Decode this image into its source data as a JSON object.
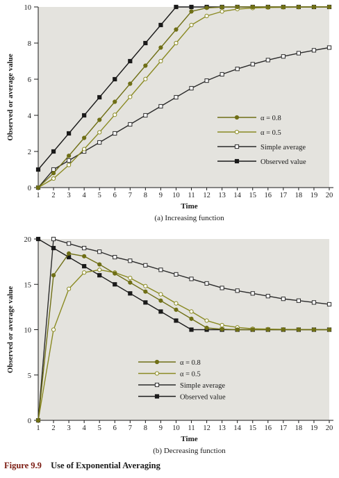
{
  "figure": {
    "caption_number": "Figure 9.9",
    "caption_text": "Use of Exponential Averaging"
  },
  "colors": {
    "plot_bg": "#e4e3de",
    "axis": "#1a1a1a",
    "observed": "#1a1a1a",
    "simple": "#2a2a2a",
    "alpha08": "#6f6f16",
    "alpha05": "#8a8a22"
  },
  "chart_data": [
    {
      "type": "line",
      "title": "(a) Increasing function",
      "xlabel": "Time",
      "ylabel": "Observed or average value",
      "xlim": [
        1,
        20
      ],
      "ylim": [
        0,
        10
      ],
      "x": [
        1,
        2,
        3,
        4,
        5,
        6,
        7,
        8,
        9,
        10,
        11,
        12,
        13,
        14,
        15,
        16,
        17,
        18,
        19,
        20
      ],
      "yticks": [
        0,
        2,
        4,
        6,
        8,
        10
      ],
      "grid": false,
      "legend_position": "right",
      "series": [
        {
          "key": "alpha08",
          "name": "α = 0.8",
          "marker": "filled-circle",
          "values": [
            0,
            0.8,
            1.76,
            2.75,
            3.75,
            4.75,
            5.75,
            6.75,
            7.75,
            8.75,
            9.75,
            9.95,
            9.99,
            10,
            10,
            10,
            10,
            10,
            10,
            10
          ]
        },
        {
          "key": "alpha05",
          "name": "α = 0.5",
          "marker": "open-circle",
          "values": [
            0,
            0.5,
            1.25,
            2.13,
            3.06,
            4.03,
            5.02,
            6.01,
            7.0,
            8.0,
            9.0,
            9.5,
            9.75,
            9.88,
            9.94,
            9.97,
            9.98,
            9.99,
            10,
            10
          ]
        },
        {
          "key": "simple",
          "name": "Simple average",
          "marker": "open-square",
          "values": [
            0,
            1.0,
            1.5,
            2.0,
            2.5,
            3.0,
            3.5,
            4.0,
            4.5,
            5.0,
            5.5,
            5.92,
            6.27,
            6.57,
            6.83,
            7.06,
            7.26,
            7.44,
            7.6,
            7.75
          ]
        },
        {
          "key": "observed",
          "name": "Observed value",
          "marker": "filled-square",
          "values": [
            1,
            2,
            3,
            4,
            5,
            6,
            7,
            8,
            9,
            10,
            10,
            10,
            10,
            10,
            10,
            10,
            10,
            10,
            10,
            10
          ]
        }
      ]
    },
    {
      "type": "line",
      "title": "(b) Decreasing function",
      "xlabel": "Time",
      "ylabel": "Observed or average value",
      "xlim": [
        1,
        20
      ],
      "ylim": [
        0,
        20
      ],
      "x": [
        1,
        2,
        3,
        4,
        5,
        6,
        7,
        8,
        9,
        10,
        11,
        12,
        13,
        14,
        15,
        16,
        17,
        18,
        19,
        20
      ],
      "yticks": [
        0,
        5,
        10,
        15,
        20
      ],
      "grid": false,
      "legend_position": "bottom-left",
      "series": [
        {
          "key": "alpha08",
          "name": "α = 0.8",
          "marker": "filled-circle",
          "values": [
            0,
            16,
            18.4,
            18.1,
            17.2,
            16.2,
            15.2,
            14.2,
            13.2,
            12.2,
            11.2,
            10.2,
            10.05,
            10.0,
            10.0,
            10.0,
            10.0,
            10.0,
            10.0,
            10.0
          ]
        },
        {
          "key": "alpha05",
          "name": "α = 0.5",
          "marker": "open-circle",
          "values": [
            0,
            10,
            14.5,
            16.3,
            16.6,
            16.3,
            15.7,
            14.8,
            13.9,
            12.9,
            12.0,
            11.0,
            10.5,
            10.25,
            10.1,
            10.06,
            10.03,
            10.02,
            10.0,
            10.0
          ]
        },
        {
          "key": "simple",
          "name": "Simple average",
          "marker": "open-square",
          "values": [
            0,
            20,
            19.5,
            19.0,
            18.6,
            18.0,
            17.6,
            17.1,
            16.6,
            16.1,
            15.6,
            15.1,
            14.6,
            14.3,
            14.0,
            13.7,
            13.4,
            13.2,
            13.0,
            12.8
          ]
        },
        {
          "key": "observed",
          "name": "Observed value",
          "marker": "filled-square",
          "values": [
            20,
            19,
            18,
            17,
            16,
            15,
            14,
            13,
            12,
            11,
            10,
            10,
            10,
            10,
            10,
            10,
            10,
            10,
            10,
            10
          ]
        }
      ]
    }
  ]
}
